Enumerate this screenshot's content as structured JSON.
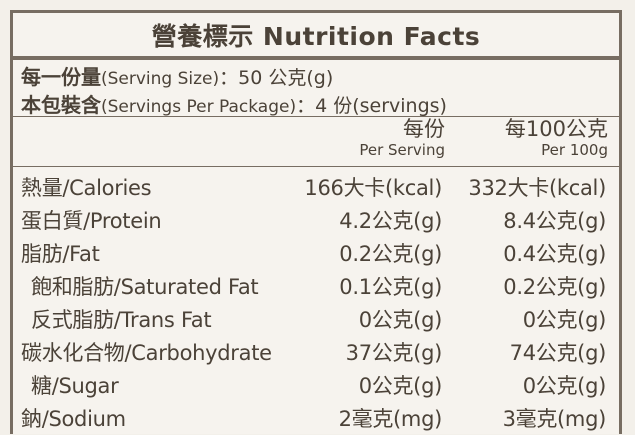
{
  "title": "營養標示 Nutrition Facts",
  "serving": {
    "size_zh": "每一份量",
    "size_en": "(Serving Size)",
    "size_sep": "：",
    "size_value": "50 公克(g)",
    "per_package_zh": "本包裝含",
    "per_package_en": "(Servings Per Package)",
    "per_package_sep": "：",
    "per_package_value": "4 份(servings)"
  },
  "columns": {
    "per_serving_zh": "每份",
    "per_serving_en": "Per Serving",
    "per_100g_zh": "每100公克",
    "per_100g_en": "Per 100g"
  },
  "rows": [
    {
      "label": "熱量/Calories",
      "per_serving": "166大卡(kcal)",
      "per_100g": "332大卡(kcal)"
    },
    {
      "label": "蛋白質/Protein",
      "per_serving": "4.2公克(g)",
      "per_100g": "8.4公克(g)"
    },
    {
      "label": "脂肪/Fat",
      "per_serving": "0.2公克(g)",
      "per_100g": "0.4公克(g)"
    },
    {
      "label": "飽和脂肪/Saturated Fat",
      "per_serving": "0.1公克(g)",
      "per_100g": "0.2公克(g)"
    },
    {
      "label": "反式脂肪/Trans Fat",
      "per_serving": "0公克(g)",
      "per_100g": "0公克(g)"
    },
    {
      "label": "碳水化合物/Carbohydrate",
      "per_serving": "37公克(g)",
      "per_100g": "74公克(g)"
    },
    {
      "label": "糖/Sugar",
      "per_serving": "0公克(g)",
      "per_100g": "0公克(g)"
    },
    {
      "label": "鈉/Sodium",
      "per_serving": "2毫克(mg)",
      "per_100g": "3毫克(mg)"
    }
  ],
  "colors": {
    "text": "#4b4238",
    "rule": "#776d62",
    "background": "#f6f3ee"
  }
}
